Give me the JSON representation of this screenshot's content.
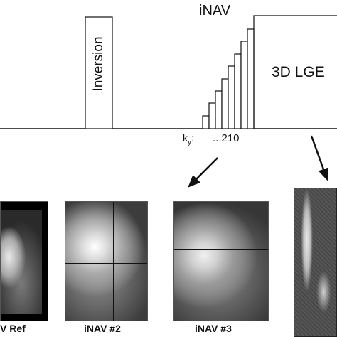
{
  "sequence": {
    "inversion_label": "Inversion",
    "inav_label": "iNAV",
    "lge_label": "3D LGE",
    "ky_prefix": "k",
    "ky_subscript": "y",
    "ky_colon": ":",
    "ky_values": "...210"
  },
  "panels": [
    {
      "caption": "V Ref",
      "kind": "ref"
    },
    {
      "caption": "iNAV #2",
      "kind": "nav"
    },
    {
      "caption": "iNAV #3",
      "kind": "nav"
    },
    {
      "caption": "",
      "kind": "lge"
    }
  ],
  "colors": {
    "line": "#111111",
    "panel_border": "#555555"
  }
}
